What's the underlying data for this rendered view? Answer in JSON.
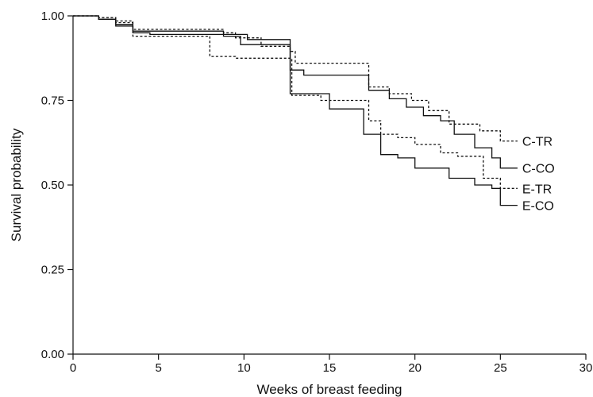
{
  "chart_data": {
    "type": "line",
    "step": true,
    "xlabel": "Weeks of breast feeding",
    "ylabel": "Survival probability",
    "xlim": [
      0,
      30
    ],
    "ylim": [
      0,
      1
    ],
    "xticks": [
      0,
      5,
      10,
      15,
      20,
      25,
      30
    ],
    "xtick_labels": [
      "0",
      "5",
      "10",
      "15",
      "20",
      "25",
      "30"
    ],
    "yticks": [
      0,
      0.25,
      0.5,
      0.75,
      1.0
    ],
    "ytick_labels": [
      "0.00",
      "0.25",
      "0.50",
      "0.75",
      "1.00"
    ],
    "grid": false,
    "legend": "series labels at line ends (right)",
    "series": [
      {
        "name": "C-TR",
        "style": "dotted",
        "x": [
          0,
          1.5,
          2.5,
          3.5,
          8.8,
          9.5,
          11,
          12.7,
          13,
          17.3,
          18.5,
          19.8,
          20.8,
          22,
          23.8,
          25,
          26
        ],
        "y": [
          1.0,
          0.995,
          0.985,
          0.96,
          0.95,
          0.935,
          0.91,
          0.895,
          0.86,
          0.79,
          0.77,
          0.75,
          0.72,
          0.68,
          0.66,
          0.63,
          0.63
        ]
      },
      {
        "name": "C-CO",
        "style": "solid",
        "x": [
          0,
          1.5,
          2.5,
          3.5,
          8.8,
          9.8,
          12.7,
          13.5,
          17.3,
          18.5,
          19.5,
          20.5,
          21.5,
          22.3,
          23.5,
          24.5,
          25,
          26
        ],
        "y": [
          1.0,
          0.99,
          0.975,
          0.955,
          0.94,
          0.915,
          0.84,
          0.825,
          0.78,
          0.755,
          0.73,
          0.705,
          0.69,
          0.65,
          0.61,
          0.58,
          0.55,
          0.55
        ]
      },
      {
        "name": "E-TR",
        "style": "dotted",
        "x": [
          0,
          1.5,
          2.5,
          3.5,
          8.0,
          9.5,
          12.8,
          14.5,
          17.3,
          18.0,
          19.0,
          20.0,
          21.5,
          22.5,
          24.0,
          25.0,
          26
        ],
        "y": [
          1.0,
          0.995,
          0.98,
          0.94,
          0.88,
          0.875,
          0.765,
          0.75,
          0.69,
          0.65,
          0.64,
          0.62,
          0.595,
          0.585,
          0.52,
          0.49,
          0.49
        ]
      },
      {
        "name": "E-CO",
        "style": "solid",
        "x": [
          0,
          1.5,
          2.5,
          3.5,
          4.5,
          10.2,
          12.7,
          15,
          17.0,
          18.0,
          19.0,
          20.0,
          22,
          23.5,
          24.5,
          25,
          26
        ],
        "y": [
          1.0,
          0.99,
          0.97,
          0.95,
          0.945,
          0.93,
          0.77,
          0.725,
          0.65,
          0.59,
          0.58,
          0.55,
          0.52,
          0.5,
          0.49,
          0.44,
          0.44
        ]
      }
    ]
  }
}
